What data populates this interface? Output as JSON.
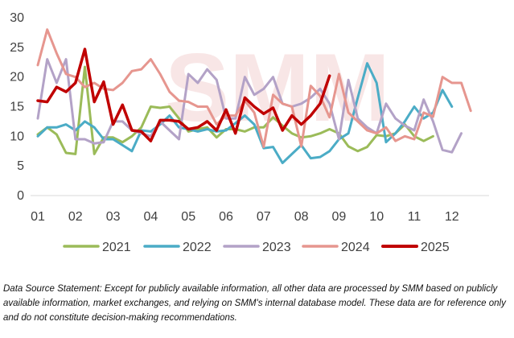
{
  "chart_data": {
    "type": "line",
    "ylim": [
      0,
      30
    ],
    "yticks": [
      0,
      5,
      10,
      15,
      20,
      25,
      30
    ],
    "xtick_labels": [
      "01",
      "02",
      "03",
      "04",
      "05",
      "06",
      "07",
      "08",
      "09",
      "10",
      "11",
      "12"
    ],
    "points_per_month": 4,
    "grid": false,
    "legend_position": "bottom",
    "watermark": "SMM",
    "series": [
      {
        "name": "2021",
        "color": "#9bbb59",
        "values": [
          10.3,
          11.5,
          10.3,
          7.2,
          7.0,
          21.7,
          7.0,
          9.8,
          9.8,
          9.0,
          10.0,
          11.5,
          15.0,
          14.8,
          15.0,
          13.0,
          10.8,
          11.2,
          11.5,
          9.8,
          11.2,
          11.2,
          10.8,
          11.5,
          11.5,
          13.2,
          11.8,
          10.5,
          9.8,
          10.0,
          10.5,
          11.2,
          10.5,
          8.3,
          7.5,
          8.2,
          10.2,
          10.0,
          10.5,
          12.0,
          10.0,
          9.2,
          10.0
        ]
      },
      {
        "name": "2022",
        "color": "#4bacc6",
        "values": [
          10.0,
          11.5,
          11.5,
          12.0,
          11.0,
          12.5,
          11.5,
          9.5,
          9.5,
          8.5,
          7.5,
          11.0,
          10.8,
          12.0,
          13.5,
          11.5,
          11.2,
          10.8,
          11.2,
          10.8,
          11.0,
          12.2,
          13.5,
          12.0,
          8.0,
          8.2,
          5.5,
          7.0,
          8.5,
          6.3,
          6.5,
          7.5,
          9.5,
          10.5,
          16.5,
          22.3,
          19.0,
          9.0,
          10.5,
          12.5,
          15.0,
          13.0,
          14.0,
          17.8,
          15.0
        ]
      },
      {
        "name": "2023",
        "color": "#b3a2c7",
        "values": [
          13.0,
          23.0,
          19.0,
          23.0,
          9.5,
          9.5,
          8.8,
          9.0,
          12.5,
          12.5,
          11.0,
          10.5,
          10.0,
          12.5,
          11.0,
          9.5,
          20.5,
          19.0,
          21.3,
          19.5,
          13.0,
          13.0,
          20.0,
          17.0,
          18.0,
          20.0,
          15.5,
          15.0,
          15.5,
          16.5,
          18.0,
          15.5,
          9.5,
          19.5,
          13.0,
          11.5,
          10.5,
          15.5,
          13.0,
          11.8,
          11.0,
          16.2,
          12.5,
          7.7,
          7.3,
          10.5
        ]
      },
      {
        "name": "2024",
        "color": "#e6968f",
        "values": [
          22.0,
          28.0,
          24.0,
          20.5,
          20.0,
          18.3,
          19.0,
          18.0,
          17.8,
          19.0,
          21.0,
          21.3,
          23.0,
          20.5,
          17.5,
          16.0,
          15.8,
          15.0,
          15.0,
          12.0,
          13.5,
          13.5,
          16.0,
          14.0,
          8.2,
          17.0,
          15.5,
          15.0,
          8.3,
          18.5,
          16.8,
          13.2,
          20.5,
          14.0,
          12.5,
          11.0,
          10.5,
          11.5,
          9.2,
          10.0,
          9.5,
          14.0,
          13.3,
          20.0,
          19.0,
          19.0,
          14.3
        ]
      },
      {
        "name": "2025",
        "color": "#c00000",
        "values": [
          16.0,
          15.8,
          18.3,
          17.5,
          19.0,
          24.7,
          15.8,
          19.2,
          12.0,
          15.3,
          11.0,
          10.8,
          9.2,
          12.7,
          12.7,
          12.5,
          11.2,
          11.5,
          12.5,
          11.0,
          14.5,
          10.5,
          16.5,
          15.0,
          13.8,
          14.8,
          11.0,
          13.5,
          12.0,
          13.5,
          15.5,
          20.2
        ]
      }
    ]
  },
  "note": "Data Source Statement: Except for publicly available information, all other data are processed by SMM based on publicly available information, market exchanges, and relying on SMM's internal database model. These data are for reference only and do not constitute decision-making recommendations."
}
